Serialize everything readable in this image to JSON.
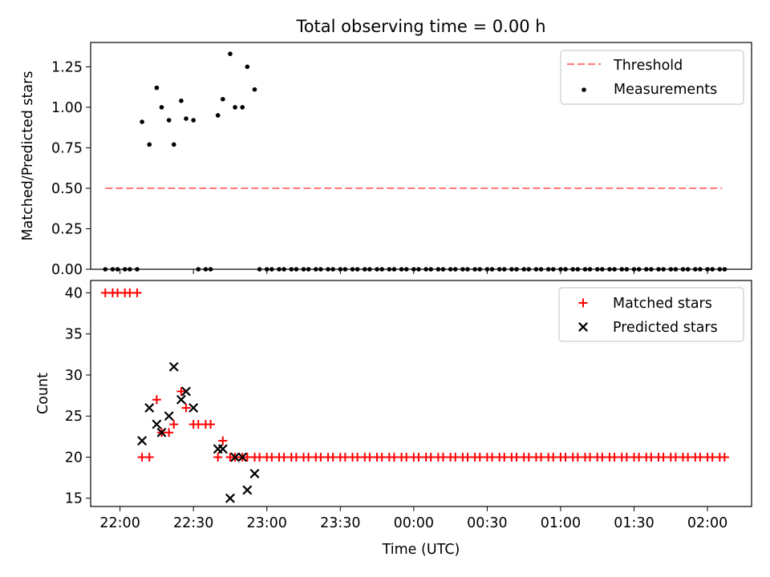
{
  "title": "Total observing time = 0.00 h",
  "x_axis": {
    "label": "Time (UTC)",
    "ticks": [
      "22:00",
      "22:30",
      "23:00",
      "23:30",
      "00:00",
      "00:30",
      "01:00",
      "01:30",
      "02:00"
    ]
  },
  "colors": {
    "threshold": "#ff7f7f",
    "measurements": "#000000",
    "matched": "#ff0000",
    "predicted": "#000000"
  },
  "chart_data": [
    {
      "type": "scatter",
      "panel": "top",
      "ylabel": "Matched/Predicted stars",
      "xlim": [
        "21:48",
        "02:18"
      ],
      "ylim": [
        0,
        1.4
      ],
      "y_ticks": [
        "0.00",
        "0.25",
        "0.50",
        "0.75",
        "1.00",
        "1.25"
      ],
      "legend_position": "upper right",
      "threshold": {
        "name": "Threshold",
        "y": 0.5,
        "x_range": [
          "21:54",
          "02:06"
        ]
      },
      "series": [
        {
          "name": "Measurements",
          "points": [
            [
              "21:54",
              0
            ],
            [
              "21:57",
              0
            ],
            [
              "21:59",
              0
            ],
            [
              "22:02",
              0
            ],
            [
              "22:04",
              0
            ],
            [
              "22:07",
              0
            ],
            [
              "22:09",
              0.91
            ],
            [
              "22:12",
              0.77
            ],
            [
              "22:15",
              1.12
            ],
            [
              "22:17",
              1.0
            ],
            [
              "22:20",
              0.92
            ],
            [
              "22:22",
              0.77
            ],
            [
              "22:25",
              1.04
            ],
            [
              "22:27",
              0.93
            ],
            [
              "22:30",
              0.92
            ],
            [
              "22:32",
              0
            ],
            [
              "22:35",
              0
            ],
            [
              "22:37",
              0
            ],
            [
              "22:40",
              0.95
            ],
            [
              "22:42",
              1.05
            ],
            [
              "22:45",
              1.33
            ],
            [
              "22:47",
              1.0
            ],
            [
              "22:50",
              1.0
            ],
            [
              "22:52",
              1.25
            ],
            [
              "22:55",
              1.11
            ],
            [
              "22:57",
              0
            ],
            [
              "23:00",
              0
            ],
            [
              "23:02",
              0
            ],
            [
              "23:05",
              0
            ],
            [
              "23:07",
              0
            ],
            [
              "23:10",
              0
            ],
            [
              "23:12",
              0
            ],
            [
              "23:15",
              0
            ],
            [
              "23:17",
              0
            ],
            [
              "23:20",
              0
            ],
            [
              "23:22",
              0
            ],
            [
              "23:25",
              0
            ],
            [
              "23:27",
              0
            ],
            [
              "23:30",
              0
            ],
            [
              "23:32",
              0
            ],
            [
              "23:35",
              0
            ],
            [
              "23:37",
              0
            ],
            [
              "23:40",
              0
            ],
            [
              "23:42",
              0
            ],
            [
              "23:45",
              0
            ],
            [
              "23:47",
              0
            ],
            [
              "23:50",
              0
            ],
            [
              "23:52",
              0
            ],
            [
              "23:55",
              0
            ],
            [
              "23:57",
              0
            ],
            [
              "00:00",
              0
            ],
            [
              "00:02",
              0
            ],
            [
              "00:05",
              0
            ],
            [
              "00:07",
              0
            ],
            [
              "00:10",
              0
            ],
            [
              "00:12",
              0
            ],
            [
              "00:15",
              0
            ],
            [
              "00:17",
              0
            ],
            [
              "00:20",
              0
            ],
            [
              "00:22",
              0
            ],
            [
              "00:25",
              0
            ],
            [
              "00:27",
              0
            ],
            [
              "00:30",
              0
            ],
            [
              "00:32",
              0
            ],
            [
              "00:35",
              0
            ],
            [
              "00:37",
              0
            ],
            [
              "00:40",
              0
            ],
            [
              "00:42",
              0
            ],
            [
              "00:45",
              0
            ],
            [
              "00:47",
              0
            ],
            [
              "00:50",
              0
            ],
            [
              "00:52",
              0
            ],
            [
              "00:55",
              0
            ],
            [
              "00:57",
              0
            ],
            [
              "01:00",
              0
            ],
            [
              "01:02",
              0
            ],
            [
              "01:05",
              0
            ],
            [
              "01:07",
              0
            ],
            [
              "01:10",
              0
            ],
            [
              "01:12",
              0
            ],
            [
              "01:15",
              0
            ],
            [
              "01:17",
              0
            ],
            [
              "01:20",
              0
            ],
            [
              "01:22",
              0
            ],
            [
              "01:25",
              0
            ],
            [
              "01:27",
              0
            ],
            [
              "01:30",
              0
            ],
            [
              "01:32",
              0
            ],
            [
              "01:35",
              0
            ],
            [
              "01:37",
              0
            ],
            [
              "01:40",
              0
            ],
            [
              "01:42",
              0
            ],
            [
              "01:45",
              0
            ],
            [
              "01:47",
              0
            ],
            [
              "01:50",
              0
            ],
            [
              "01:52",
              0
            ],
            [
              "01:55",
              0
            ],
            [
              "01:57",
              0
            ],
            [
              "02:00",
              0
            ],
            [
              "02:02",
              0
            ],
            [
              "02:05",
              0
            ],
            [
              "02:07",
              0
            ]
          ]
        }
      ]
    },
    {
      "type": "scatter",
      "panel": "bottom",
      "ylabel": "Count",
      "xlim": [
        "21:48",
        "02:18"
      ],
      "ylim": [
        14,
        41.5
      ],
      "y_ticks": [
        "15",
        "20",
        "25",
        "30",
        "35",
        "40"
      ],
      "legend_position": "upper right",
      "series": [
        {
          "name": "Matched stars",
          "marker": "plus",
          "points": [
            [
              "21:54",
              40
            ],
            [
              "21:57",
              40
            ],
            [
              "21:59",
              40
            ],
            [
              "22:02",
              40
            ],
            [
              "22:04",
              40
            ],
            [
              "22:07",
              40
            ],
            [
              "22:09",
              20
            ],
            [
              "22:12",
              20
            ],
            [
              "22:15",
              27
            ],
            [
              "22:17",
              23
            ],
            [
              "22:20",
              23
            ],
            [
              "22:22",
              24
            ],
            [
              "22:25",
              28
            ],
            [
              "22:27",
              26
            ],
            [
              "22:30",
              24
            ],
            [
              "22:32",
              24
            ],
            [
              "22:35",
              24
            ],
            [
              "22:37",
              24
            ],
            [
              "22:40",
              20
            ],
            [
              "22:42",
              22
            ],
            [
              "22:45",
              20
            ],
            [
              "22:47",
              20
            ],
            [
              "22:50",
              20
            ],
            [
              "22:52",
              20
            ],
            [
              "22:55",
              20
            ],
            [
              "22:57",
              20
            ],
            [
              "23:00",
              20
            ],
            [
              "23:02",
              20
            ],
            [
              "23:05",
              20
            ],
            [
              "23:07",
              20
            ],
            [
              "23:10",
              20
            ],
            [
              "23:12",
              20
            ],
            [
              "23:15",
              20
            ],
            [
              "23:17",
              20
            ],
            [
              "23:20",
              20
            ],
            [
              "23:22",
              20
            ],
            [
              "23:25",
              20
            ],
            [
              "23:27",
              20
            ],
            [
              "23:30",
              20
            ],
            [
              "23:32",
              20
            ],
            [
              "23:35",
              20
            ],
            [
              "23:37",
              20
            ],
            [
              "23:40",
              20
            ],
            [
              "23:42",
              20
            ],
            [
              "23:45",
              20
            ],
            [
              "23:47",
              20
            ],
            [
              "23:50",
              20
            ],
            [
              "23:52",
              20
            ],
            [
              "23:55",
              20
            ],
            [
              "23:57",
              20
            ],
            [
              "00:00",
              20
            ],
            [
              "00:02",
              20
            ],
            [
              "00:05",
              20
            ],
            [
              "00:07",
              20
            ],
            [
              "00:10",
              20
            ],
            [
              "00:12",
              20
            ],
            [
              "00:15",
              20
            ],
            [
              "00:17",
              20
            ],
            [
              "00:20",
              20
            ],
            [
              "00:22",
              20
            ],
            [
              "00:25",
              20
            ],
            [
              "00:27",
              20
            ],
            [
              "00:30",
              20
            ],
            [
              "00:32",
              20
            ],
            [
              "00:35",
              20
            ],
            [
              "00:37",
              20
            ],
            [
              "00:40",
              20
            ],
            [
              "00:42",
              20
            ],
            [
              "00:45",
              20
            ],
            [
              "00:47",
              20
            ],
            [
              "00:50",
              20
            ],
            [
              "00:52",
              20
            ],
            [
              "00:55",
              20
            ],
            [
              "00:57",
              20
            ],
            [
              "01:00",
              20
            ],
            [
              "01:02",
              20
            ],
            [
              "01:05",
              20
            ],
            [
              "01:07",
              20
            ],
            [
              "01:10",
              20
            ],
            [
              "01:12",
              20
            ],
            [
              "01:15",
              20
            ],
            [
              "01:17",
              20
            ],
            [
              "01:20",
              20
            ],
            [
              "01:22",
              20
            ],
            [
              "01:25",
              20
            ],
            [
              "01:27",
              20
            ],
            [
              "01:30",
              20
            ],
            [
              "01:32",
              20
            ],
            [
              "01:35",
              20
            ],
            [
              "01:37",
              20
            ],
            [
              "01:40",
              20
            ],
            [
              "01:42",
              20
            ],
            [
              "01:45",
              20
            ],
            [
              "01:47",
              20
            ],
            [
              "01:50",
              20
            ],
            [
              "01:52",
              20
            ],
            [
              "01:55",
              20
            ],
            [
              "01:57",
              20
            ],
            [
              "02:00",
              20
            ],
            [
              "02:02",
              20
            ],
            [
              "02:05",
              20
            ],
            [
              "02:07",
              20
            ]
          ]
        },
        {
          "name": "Predicted stars",
          "marker": "x",
          "points": [
            [
              "22:09",
              22
            ],
            [
              "22:12",
              26
            ],
            [
              "22:15",
              24
            ],
            [
              "22:17",
              23
            ],
            [
              "22:20",
              25
            ],
            [
              "22:22",
              31
            ],
            [
              "22:25",
              27
            ],
            [
              "22:27",
              28
            ],
            [
              "22:30",
              26
            ],
            [
              "22:40",
              21
            ],
            [
              "22:42",
              21
            ],
            [
              "22:45",
              15
            ],
            [
              "22:47",
              20
            ],
            [
              "22:50",
              20
            ],
            [
              "22:52",
              16
            ],
            [
              "22:55",
              18
            ]
          ]
        }
      ]
    }
  ]
}
